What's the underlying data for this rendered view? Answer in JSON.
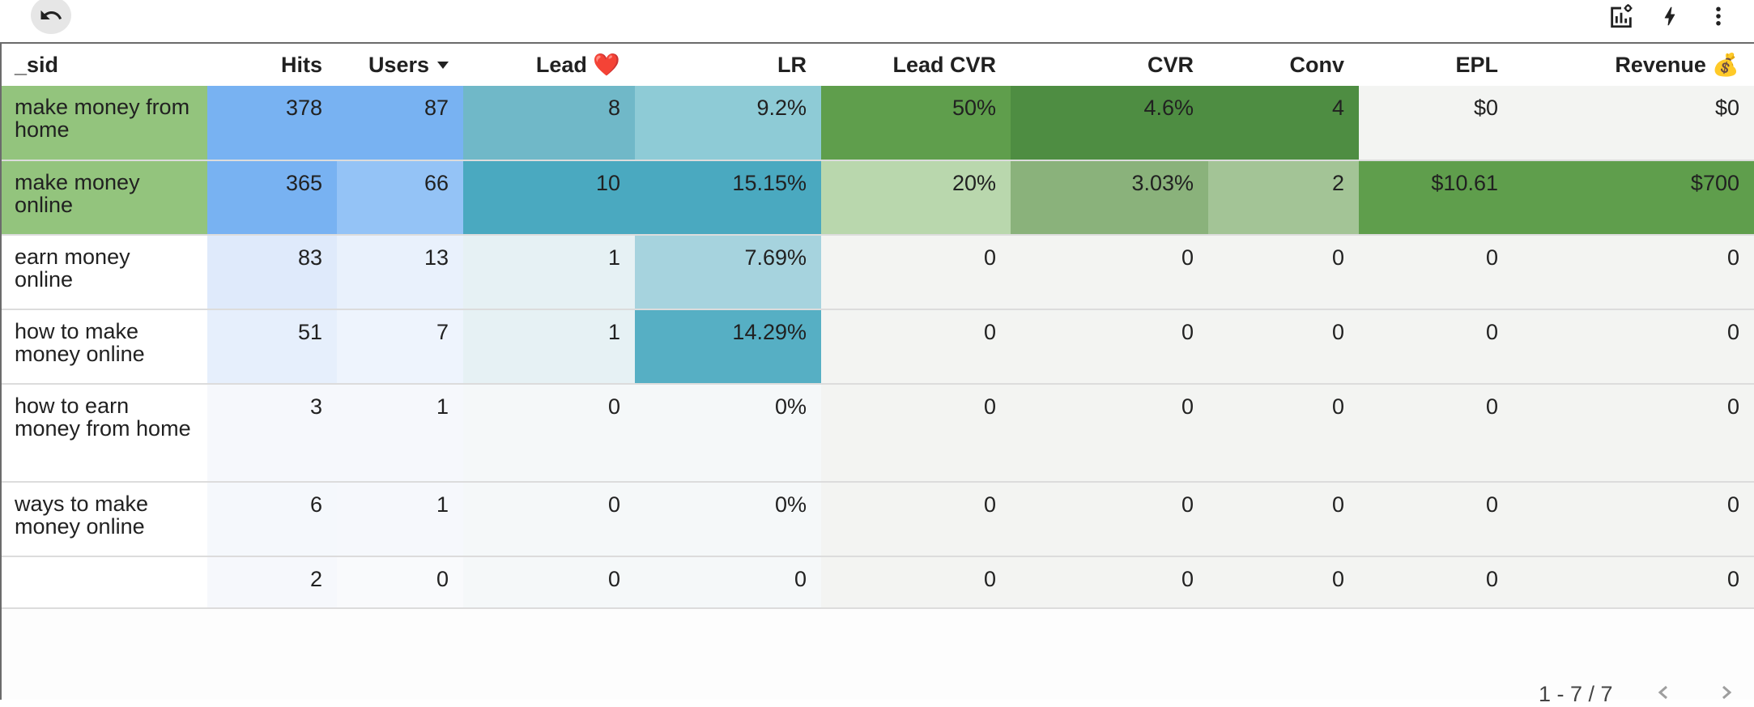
{
  "toolbar": {
    "undo_icon": "undo-icon",
    "chart_settings_icon": "chart-settings-icon",
    "bolt_icon": "bolt-icon",
    "more_icon": "more-vert-icon"
  },
  "table": {
    "columns": [
      {
        "key": "sid",
        "label": "_sid"
      },
      {
        "key": "hits",
        "label": "Hits"
      },
      {
        "key": "users",
        "label": "Users"
      },
      {
        "key": "lead",
        "label": "Lead ❤️"
      },
      {
        "key": "lr",
        "label": "LR"
      },
      {
        "key": "lead_cvr",
        "label": "Lead CVR"
      },
      {
        "key": "cvr",
        "label": "CVR"
      },
      {
        "key": "conv",
        "label": "Conv"
      },
      {
        "key": "epl",
        "label": "EPL"
      },
      {
        "key": "revenue",
        "label": "Revenue 💰"
      }
    ],
    "sorted_column": "users",
    "rows": [
      [
        "make money from home",
        "378",
        "87",
        "8",
        "9.2%",
        "50%",
        "4.6%",
        "4",
        "$0",
        "$0"
      ],
      [
        "make money online",
        "365",
        "66",
        "10",
        "15.15%",
        "20%",
        "3.03%",
        "2",
        "$10.61",
        "$700"
      ],
      [
        "earn money online",
        "83",
        "13",
        "1",
        "7.69%",
        "0",
        "0",
        "0",
        "0",
        "0"
      ],
      [
        "how to make money online",
        "51",
        "7",
        "1",
        "14.29%",
        "0",
        "0",
        "0",
        "0",
        "0"
      ],
      [
        "how to earn money from home",
        "3",
        "1",
        "0",
        "0%",
        "0",
        "0",
        "0",
        "0",
        "0"
      ],
      [
        "ways to make money online",
        "6",
        "1",
        "0",
        "0%",
        "0",
        "0",
        "0",
        "0",
        "0"
      ],
      [
        "",
        "2",
        "0",
        "0",
        "0",
        "0",
        "0",
        "0",
        "0",
        "0"
      ]
    ],
    "cell_colors": [
      [
        "#93c47d",
        "#78b2f2",
        "#78b2f2",
        "#70b8c8",
        "#8ecbd6",
        "#5f9e4c",
        "#4e8d42",
        "#4e8d42",
        "#f3f4f2",
        "#f3f4f2"
      ],
      [
        "#93c47d",
        "#78b2f2",
        "#94c3f6",
        "#4aa9c0",
        "#4aa9c0",
        "#b9d7ad",
        "#8ab27b",
        "#a3c496",
        "#5f9e4c",
        "#5f9e4c"
      ],
      [
        "#ffffff",
        "#dfeafb",
        "#e9f1fc",
        "#e6f1f4",
        "#a6d3de",
        "#f3f4f2",
        "#f3f4f2",
        "#f3f4f2",
        "#f3f4f2",
        "#f3f4f2"
      ],
      [
        "#ffffff",
        "#e6effc",
        "#eef4fd",
        "#e6f1f4",
        "#56afc4",
        "#f3f4f2",
        "#f3f4f2",
        "#f3f4f2",
        "#f3f4f2",
        "#f3f4f2"
      ],
      [
        "#ffffff",
        "#f6f8fc",
        "#f6f8fc",
        "#f5f8f9",
        "#f5f8f9",
        "#f3f4f2",
        "#f3f4f2",
        "#f3f4f2",
        "#f3f4f2",
        "#f3f4f2"
      ],
      [
        "#ffffff",
        "#f5f8fc",
        "#f6f8fc",
        "#f5f8f9",
        "#f5f8f9",
        "#f3f4f2",
        "#f3f4f2",
        "#f3f4f2",
        "#f3f4f2",
        "#f3f4f2"
      ],
      [
        "#ffffff",
        "#f6f8fc",
        "#f9fafc",
        "#f5f8f9",
        "#f5f8f9",
        "#f3f4f2",
        "#f3f4f2",
        "#f3f4f2",
        "#f3f4f2",
        "#f3f4f2"
      ]
    ]
  },
  "pagination": {
    "range": "1 - 7 / 7",
    "prev_icon": "chevron-left-icon",
    "next_icon": "chevron-right-icon"
  }
}
